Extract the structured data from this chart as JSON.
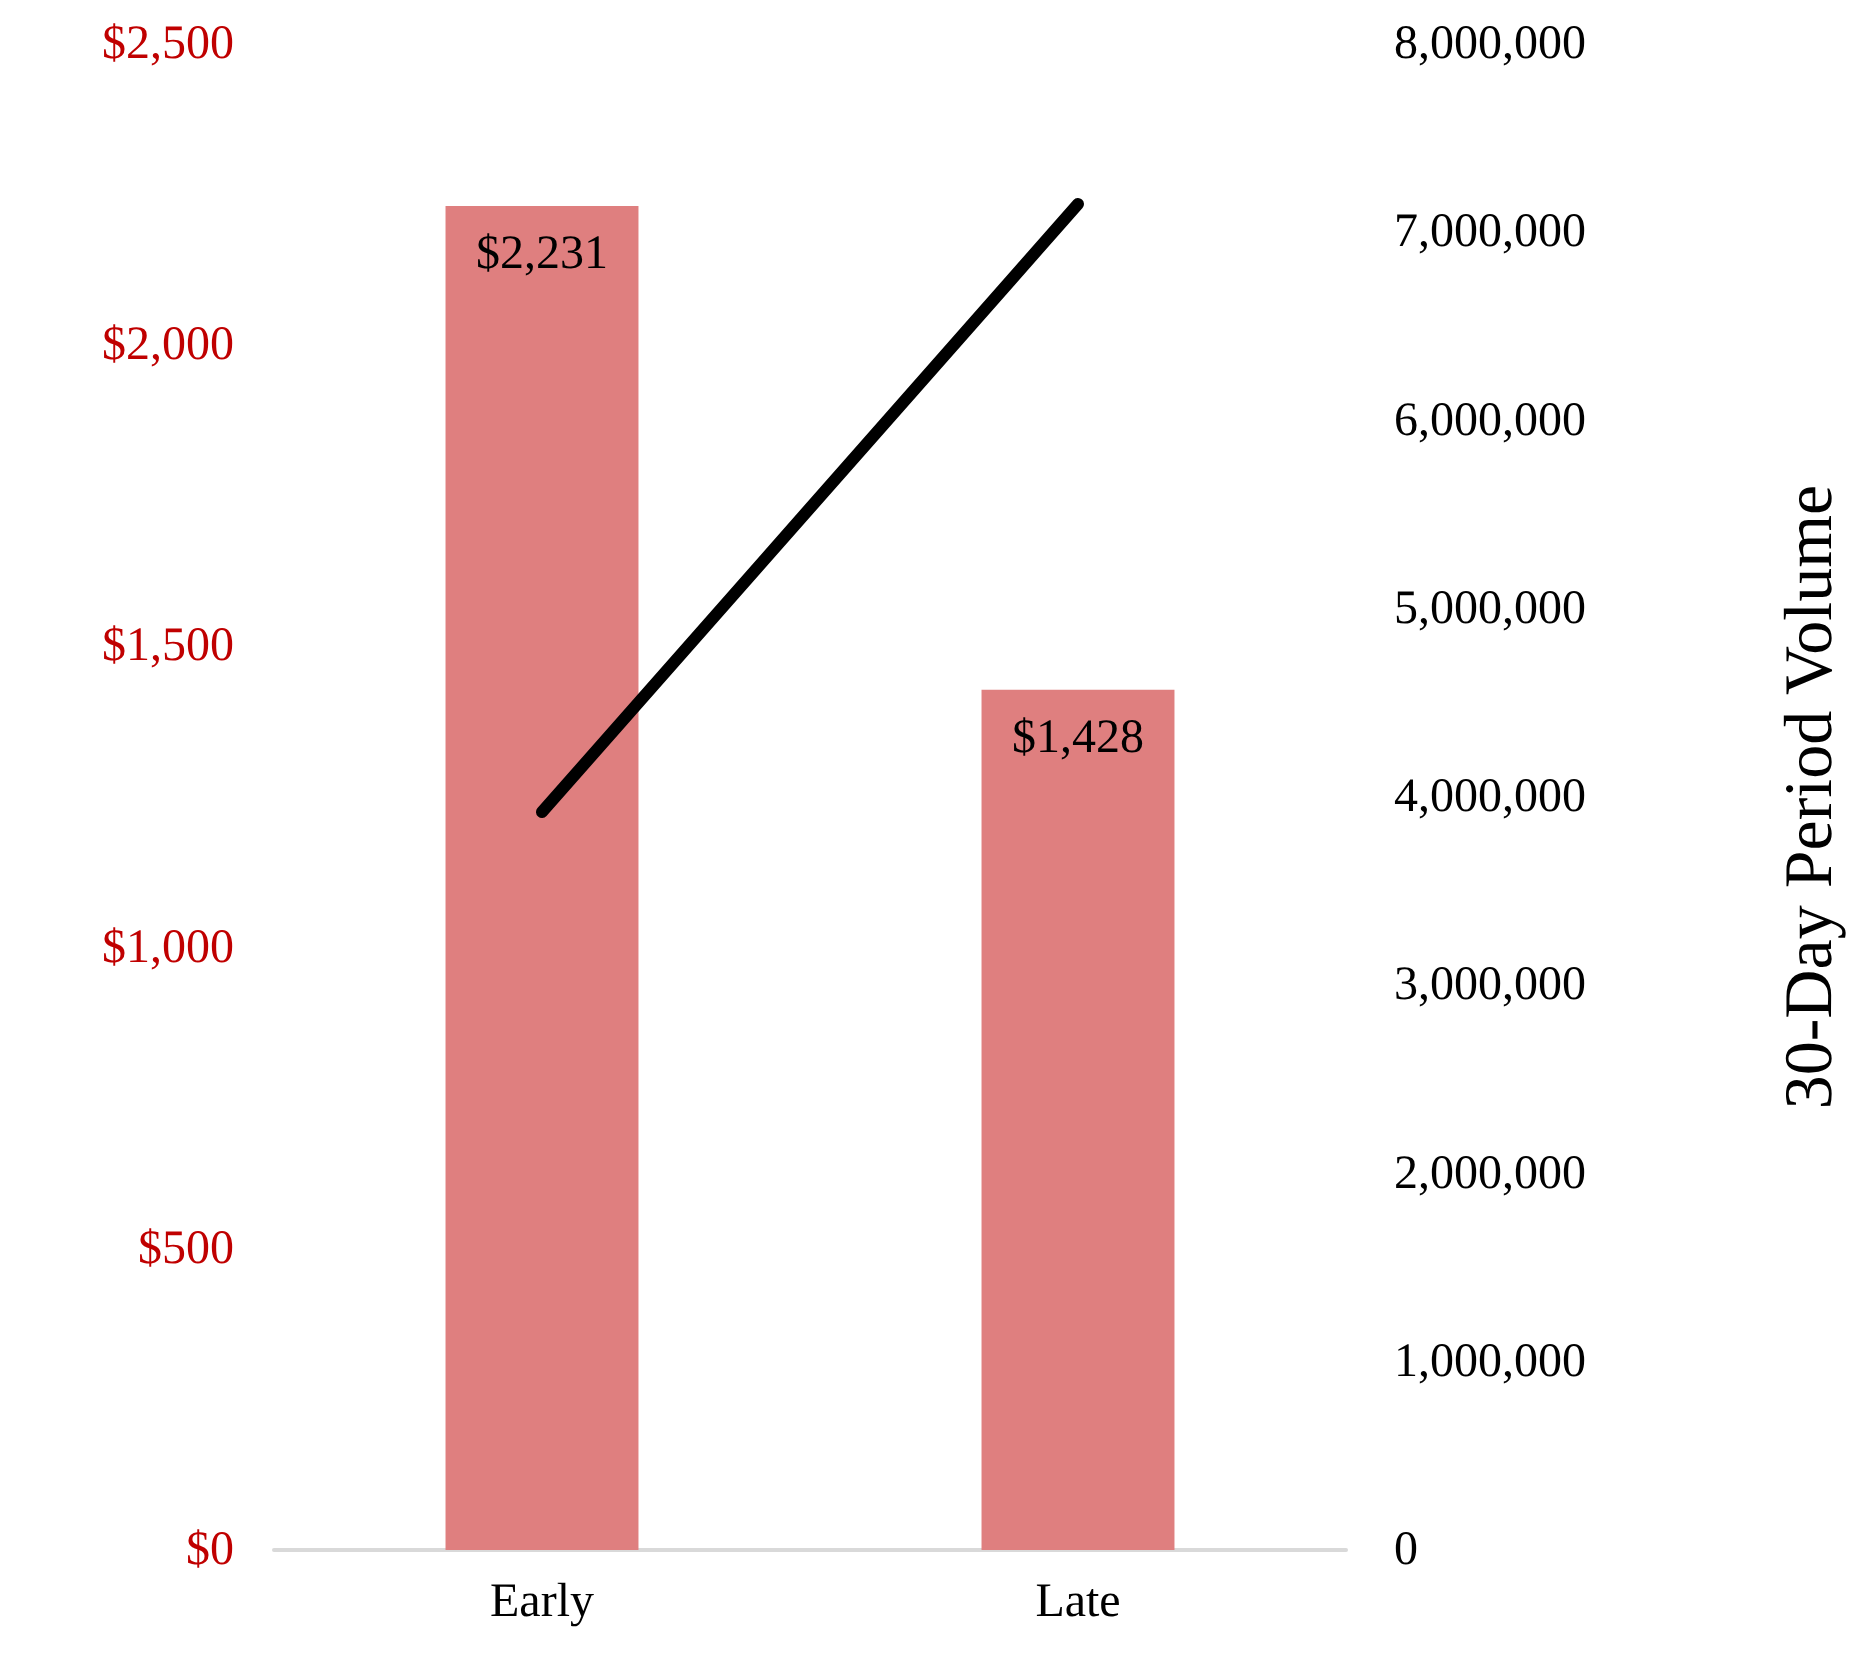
{
  "chart_data": {
    "type": "bar",
    "categories": [
      "Early",
      "Late"
    ],
    "y2label": "30-Day Period Volume",
    "series": [
      {
        "color": "#df7f7f",
        "values": [
          2231,
          1428
        ],
        "value_labels": [
          "$2,231",
          "$1,428"
        ]
      },
      {
        "type": "line",
        "axis": "y2",
        "color": "#000000",
        "values": [
          3920000,
          7150000
        ]
      }
    ],
    "ylim": [
      0,
      2500
    ],
    "yticks": [
      {
        "value": 0,
        "label": "$0"
      },
      {
        "value": 500,
        "label": "$500"
      },
      {
        "value": 1000,
        "label": "$1,000"
      },
      {
        "value": 1500,
        "label": "$1,500"
      },
      {
        "value": 2000,
        "label": "$2,000"
      },
      {
        "value": 2500,
        "label": "$2,500"
      }
    ],
    "y2lim": [
      0,
      8000000
    ],
    "y2ticks": [
      {
        "value": 0,
        "label": "0"
      },
      {
        "value": 1000000,
        "label": "1,000,000"
      },
      {
        "value": 2000000,
        "label": "2,000,000"
      },
      {
        "value": 3000000,
        "label": "3,000,000"
      },
      {
        "value": 4000000,
        "label": "4,000,000"
      },
      {
        "value": 5000000,
        "label": "5,000,000"
      },
      {
        "value": 6000000,
        "label": "6,000,000"
      },
      {
        "value": 7000000,
        "label": "7,000,000"
      },
      {
        "value": 8000000,
        "label": "8,000,000"
      }
    ],
    "grid": false,
    "marker": "none"
  }
}
